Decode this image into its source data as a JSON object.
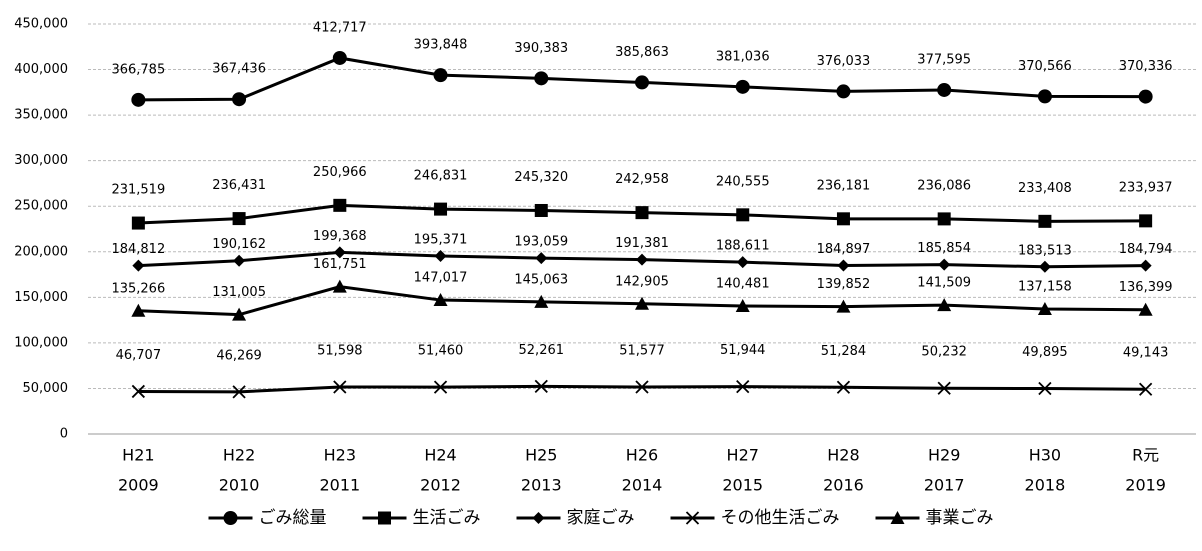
{
  "chart_data": {
    "type": "line",
    "categories": [
      [
        "H21",
        "2009"
      ],
      [
        "H22",
        "2010"
      ],
      [
        "H23",
        "2011"
      ],
      [
        "H24",
        "2012"
      ],
      [
        "H25",
        "2013"
      ],
      [
        "H26",
        "2014"
      ],
      [
        "H27",
        "2015"
      ],
      [
        "H28",
        "2016"
      ],
      [
        "H29",
        "2017"
      ],
      [
        "H30",
        "2018"
      ],
      [
        "R元",
        "2019"
      ]
    ],
    "ylim": [
      0,
      450000
    ],
    "yticks": [
      0,
      {
        "value": 50000,
        "label": "50,000"
      },
      {
        "value": 100000,
        "label": "100,000"
      },
      {
        "value": 150000,
        "label": "150,000"
      },
      {
        "value": 200000,
        "label": "200,000"
      },
      {
        "value": 250000,
        "label": "250,000"
      },
      {
        "value": 300000,
        "label": "300,000"
      },
      {
        "value": 350000,
        "label": "350,000"
      },
      {
        "value": 400000,
        "label": "400,000"
      },
      {
        "value": 450000,
        "label": "450,000"
      }
    ],
    "grid": true,
    "legend": "bottom",
    "series": [
      {
        "name": "ごみ総量",
        "color": "#000000",
        "marker": "circle",
        "values": [
          366785,
          367436,
          412717,
          393848,
          390383,
          385863,
          381036,
          376033,
          377595,
          370566,
          370336
        ],
        "value_labels": [
          "366,785",
          "367,436",
          "412,717",
          "393,848",
          "390,383",
          "385,863",
          "381,036",
          "376,033",
          "377,595",
          "370,566",
          "370,336"
        ]
      },
      {
        "name": "生活ごみ",
        "color": "#000000",
        "marker": "square",
        "values": [
          231519,
          236431,
          250966,
          246831,
          245320,
          242958,
          240555,
          236181,
          236086,
          233408,
          233937
        ],
        "value_labels": [
          "231,519",
          "236,431",
          "250,966",
          "246,831",
          "245,320",
          "242,958",
          "240,555",
          "236,181",
          "236,086",
          "233,408",
          "233,937"
        ]
      },
      {
        "name": "家庭ごみ",
        "color": "#000000",
        "marker": "diamond",
        "values": [
          184812,
          190162,
          199368,
          195371,
          193059,
          191381,
          188611,
          184897,
          185854,
          183513,
          184794
        ],
        "value_labels": [
          "184,812",
          "190,162",
          "199,368",
          "195,371",
          "193,059",
          "191,381",
          "188,611",
          "184,897",
          "185,854",
          "183,513",
          "184,794"
        ]
      },
      {
        "name": "その他生活ごみ",
        "color": "#000000",
        "marker": "x",
        "values": [
          46707,
          46269,
          51598,
          51460,
          52261,
          51577,
          51944,
          51284,
          50232,
          49895,
          49143
        ],
        "value_labels": [
          "46,707",
          "46,269",
          "51,598",
          "51,460",
          "52,261",
          "51,577",
          "51,944",
          "51,284",
          "50,232",
          "49,895",
          "49,143"
        ]
      },
      {
        "name": "事業ごみ",
        "color": "#000000",
        "marker": "triangle",
        "values": [
          135266,
          131005,
          161751,
          147017,
          145063,
          142905,
          140481,
          139852,
          141509,
          137158,
          136399
        ],
        "value_labels": [
          "135,266",
          "131,005",
          "161,751",
          "147,017",
          "145,063",
          "142,905",
          "140,481",
          "139,852",
          "141,509",
          "137,158",
          "136,399"
        ]
      }
    ]
  }
}
